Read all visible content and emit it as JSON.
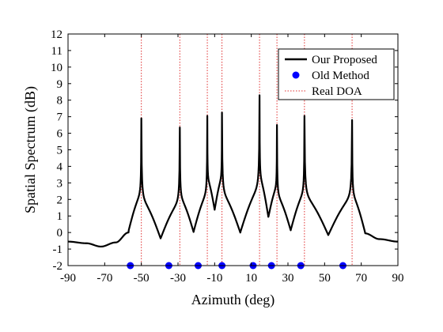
{
  "chart_data": {
    "type": "line",
    "xlabel": "Azimuth (deg)",
    "ylabel": "Spatial Spectrum (dB)",
    "xlim": [
      -90,
      90
    ],
    "ylim": [
      -2,
      12
    ],
    "x_ticks": [
      -90,
      -70,
      -50,
      -30,
      -10,
      10,
      30,
      50,
      70,
      90
    ],
    "y_ticks": [
      -2,
      -1,
      0,
      1,
      2,
      3,
      4,
      5,
      6,
      7,
      8,
      9,
      10,
      11,
      12
    ],
    "grid": false,
    "legend_position": "top-right",
    "series": [
      {
        "name": "Our Proposed",
        "type": "line",
        "color": "#000000",
        "baseline_points": [
          [
            -90,
            -0.55
          ],
          [
            -80,
            -0.65
          ],
          [
            -72,
            -0.85
          ],
          [
            -64,
            -0.6
          ],
          [
            -57,
            0.0
          ]
        ],
        "peaks": [
          {
            "x": -50,
            "y": 6.9
          },
          {
            "x": -29,
            "y": 6.35
          },
          {
            "x": -14,
            "y": 7.05
          },
          {
            "x": -6,
            "y": 7.25
          },
          {
            "x": 14.5,
            "y": 8.3
          },
          {
            "x": 24,
            "y": 6.5
          },
          {
            "x": 39,
            "y": 7.05
          },
          {
            "x": 65,
            "y": 6.8
          }
        ],
        "valleys": [
          {
            "x": -39.5,
            "y": -0.45
          },
          {
            "x": -21.5,
            "y": -0.05
          },
          {
            "x": -10,
            "y": 1.3
          },
          {
            "x": 4,
            "y": -0.1
          },
          {
            "x": 19.3,
            "y": 0.85
          },
          {
            "x": 31.5,
            "y": 0.05
          },
          {
            "x": 52,
            "y": -0.25
          }
        ],
        "tail_points": [
          [
            72,
            -0.05
          ],
          [
            80,
            -0.4
          ],
          [
            90,
            -0.55
          ]
        ]
      },
      {
        "name": "Old Method",
        "type": "scatter",
        "color": "#0000ff",
        "x": [
          -56,
          -35,
          -19,
          -6,
          11,
          21,
          37,
          60
        ],
        "y": [
          -2,
          -2,
          -2,
          -2,
          -2,
          -2,
          -2,
          -2
        ]
      },
      {
        "name": "Real DOA",
        "type": "vline",
        "color": "#e03030",
        "x": [
          -50,
          -29,
          -14,
          -6,
          14.5,
          24,
          39,
          65
        ]
      }
    ]
  }
}
